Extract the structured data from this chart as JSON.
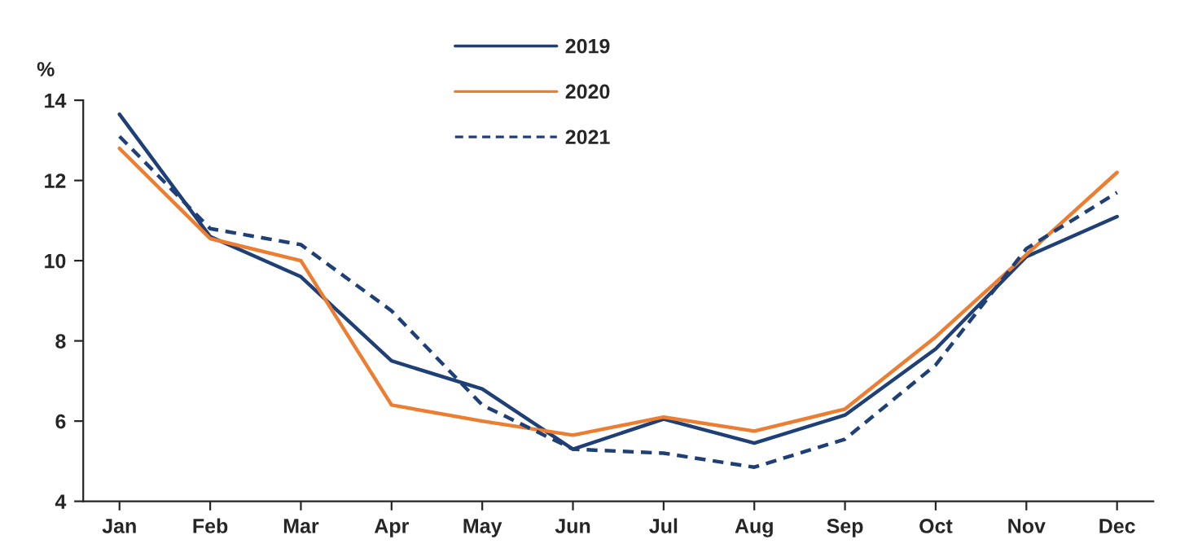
{
  "chart_data": {
    "type": "line",
    "ylabel": "%",
    "categories": [
      "Jan",
      "Feb",
      "Mar",
      "Apr",
      "May",
      "Jun",
      "Jul",
      "Aug",
      "Sep",
      "Oct",
      "Nov",
      "Dec"
    ],
    "series": [
      {
        "name": "2019",
        "color": "#1f3f77",
        "line_style": "solid",
        "values": [
          13.65,
          10.6,
          9.6,
          7.5,
          6.8,
          5.3,
          6.05,
          5.45,
          6.15,
          7.8,
          10.1,
          11.1
        ]
      },
      {
        "name": "2020",
        "color": "#ed7d31",
        "line_style": "solid",
        "values": [
          12.8,
          10.55,
          10.0,
          6.4,
          6.0,
          5.65,
          6.1,
          5.75,
          6.3,
          8.1,
          10.15,
          12.2
        ]
      },
      {
        "name": "2021",
        "color": "#1f3f77",
        "line_style": "dashed",
        "values": [
          13.1,
          10.8,
          10.4,
          8.75,
          6.4,
          5.3,
          5.2,
          4.85,
          5.55,
          7.4,
          10.3,
          11.7
        ]
      }
    ],
    "ylim": [
      4,
      14
    ],
    "yticks": [
      4,
      6,
      8,
      10,
      12,
      14
    ],
    "grid": false,
    "legend": "top",
    "marker": "none"
  }
}
